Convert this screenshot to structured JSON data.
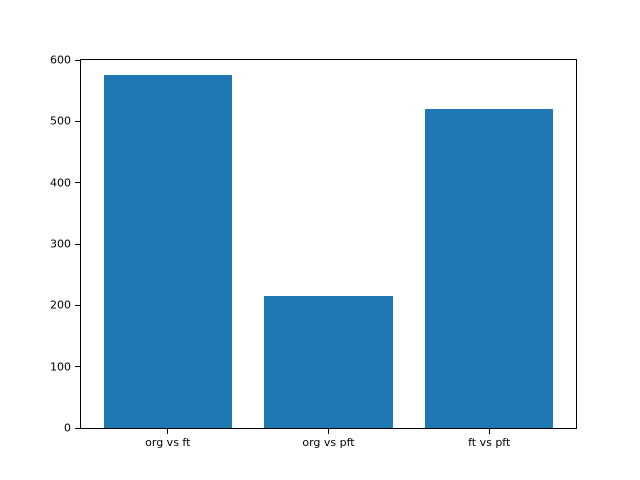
{
  "figure": {
    "background_color": "#ffffff",
    "axis_color": "#000000",
    "text_color": "#000000"
  },
  "chart_data": {
    "type": "bar",
    "title": "",
    "xlabel": "",
    "ylabel": "",
    "categories": [
      "org vs ft",
      "org vs pft",
      "ft vs pft"
    ],
    "values": [
      575,
      215,
      520
    ],
    "ylim": [
      0,
      600
    ],
    "yticks": [
      0,
      100,
      200,
      300,
      400,
      500,
      600
    ],
    "bar_color": "#1f77b4",
    "bar_width_fraction": 0.8,
    "x_margin_fraction": 0.05,
    "grid": false,
    "legend": null
  }
}
